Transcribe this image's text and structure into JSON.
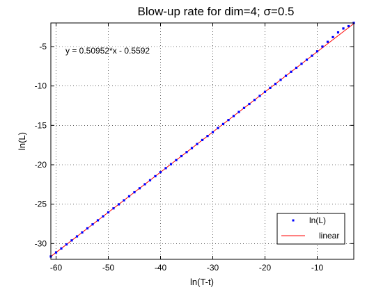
{
  "chart_data": {
    "type": "scatter",
    "title": "Blow-up rate for dim=4; σ=0.5",
    "xlabel": "ln(T-t)",
    "ylabel": "ln(L)",
    "xlim": [
      -61,
      -3
    ],
    "ylim": [
      -32,
      -2
    ],
    "xticks": [
      -60,
      -50,
      -40,
      -30,
      -20,
      -10
    ],
    "yticks": [
      -30,
      -25,
      -20,
      -15,
      -10,
      -5
    ],
    "grid": true,
    "legend_position": "bottom-right",
    "annotation": "y = 0.50952*x - 0.5592",
    "fit": {
      "slope": 0.50952,
      "intercept": -0.5592
    },
    "series": [
      {
        "name": "ln(L)",
        "kind": "markers",
        "color": "#0000ff",
        "x": [
          -61.0,
          -60.0,
          -59.0,
          -58.0,
          -57.0,
          -56.0,
          -55.0,
          -54.0,
          -53.0,
          -52.0,
          -51.0,
          -50.0,
          -49.0,
          -48.0,
          -47.0,
          -46.0,
          -45.0,
          -44.0,
          -43.0,
          -42.0,
          -41.0,
          -40.0,
          -39.0,
          -38.0,
          -37.0,
          -36.0,
          -35.0,
          -34.0,
          -33.0,
          -32.0,
          -31.0,
          -30.0,
          -29.0,
          -28.0,
          -27.0,
          -26.0,
          -25.0,
          -24.0,
          -23.0,
          -22.0,
          -21.0,
          -20.0,
          -19.0,
          -18.0,
          -17.0,
          -16.0,
          -15.0,
          -14.0,
          -13.0,
          -12.0,
          -11.0,
          -10.0,
          -9.0,
          -8.0,
          -7.0,
          -6.0,
          -5.0,
          -4.0,
          -3.0
        ],
        "y": [
          -31.64,
          -31.13,
          -30.62,
          -30.11,
          -29.6,
          -29.09,
          -28.58,
          -28.07,
          -27.56,
          -27.05,
          -26.54,
          -26.04,
          -25.53,
          -25.02,
          -24.51,
          -24.0,
          -23.49,
          -22.98,
          -22.47,
          -21.96,
          -21.45,
          -20.94,
          -20.43,
          -19.92,
          -19.41,
          -18.9,
          -18.39,
          -17.88,
          -17.37,
          -16.86,
          -16.35,
          -15.85,
          -15.34,
          -14.83,
          -14.32,
          -13.81,
          -13.3,
          -12.79,
          -12.28,
          -11.77,
          -11.26,
          -10.75,
          -10.24,
          -9.73,
          -9.22,
          -8.71,
          -8.2,
          -7.69,
          -7.18,
          -6.67,
          -6.16,
          -5.6,
          -5.0,
          -4.4,
          -3.8,
          -3.2,
          -2.7,
          -2.4,
          -2.0
        ]
      },
      {
        "name": "linear",
        "kind": "line",
        "color": "#ff0000",
        "x": [
          -61,
          -3
        ],
        "y": [
          -31.64,
          -2.09
        ]
      }
    ]
  }
}
